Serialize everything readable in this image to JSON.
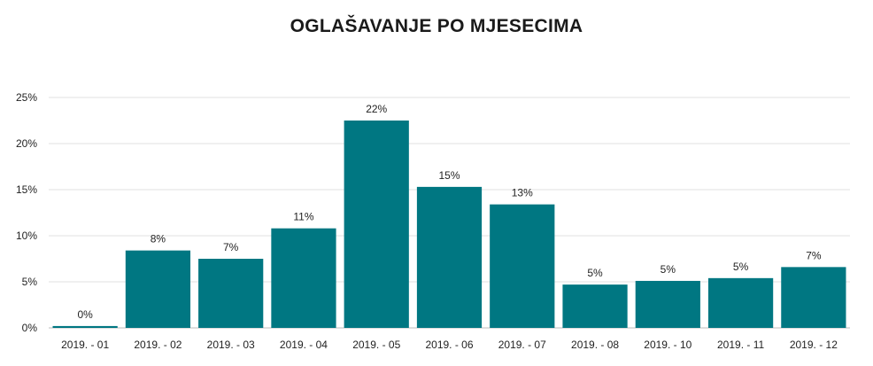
{
  "chart_data": {
    "type": "bar",
    "title": "OGLAŠAVANJE PO MJESECIMA",
    "xlabel": "",
    "ylabel": "",
    "categories": [
      "2019. - 01",
      "2019. - 02",
      "2019. - 03",
      "2019. - 04",
      "2019. - 05",
      "2019. - 06",
      "2019. - 07",
      "2019. - 08",
      "2019. - 10",
      "2019. - 11",
      "2019. - 12"
    ],
    "values": [
      0.2,
      8.4,
      7.5,
      10.8,
      22.5,
      15.3,
      13.4,
      4.7,
      5.1,
      5.4,
      6.6
    ],
    "data_labels": [
      "0%",
      "8%",
      "7%",
      "11%",
      "22%",
      "15%",
      "13%",
      "5%",
      "5%",
      "5%",
      "7%"
    ],
    "y_ticks": [
      0,
      5,
      10,
      15,
      20,
      25
    ],
    "y_tick_labels": [
      "0%",
      "5%",
      "10%",
      "15%",
      "20%",
      "25%"
    ],
    "ylim": [
      0,
      25
    ],
    "grid": true,
    "legend": "none",
    "bar_color": "#007782",
    "gridline_color": "#e2e2e2"
  }
}
